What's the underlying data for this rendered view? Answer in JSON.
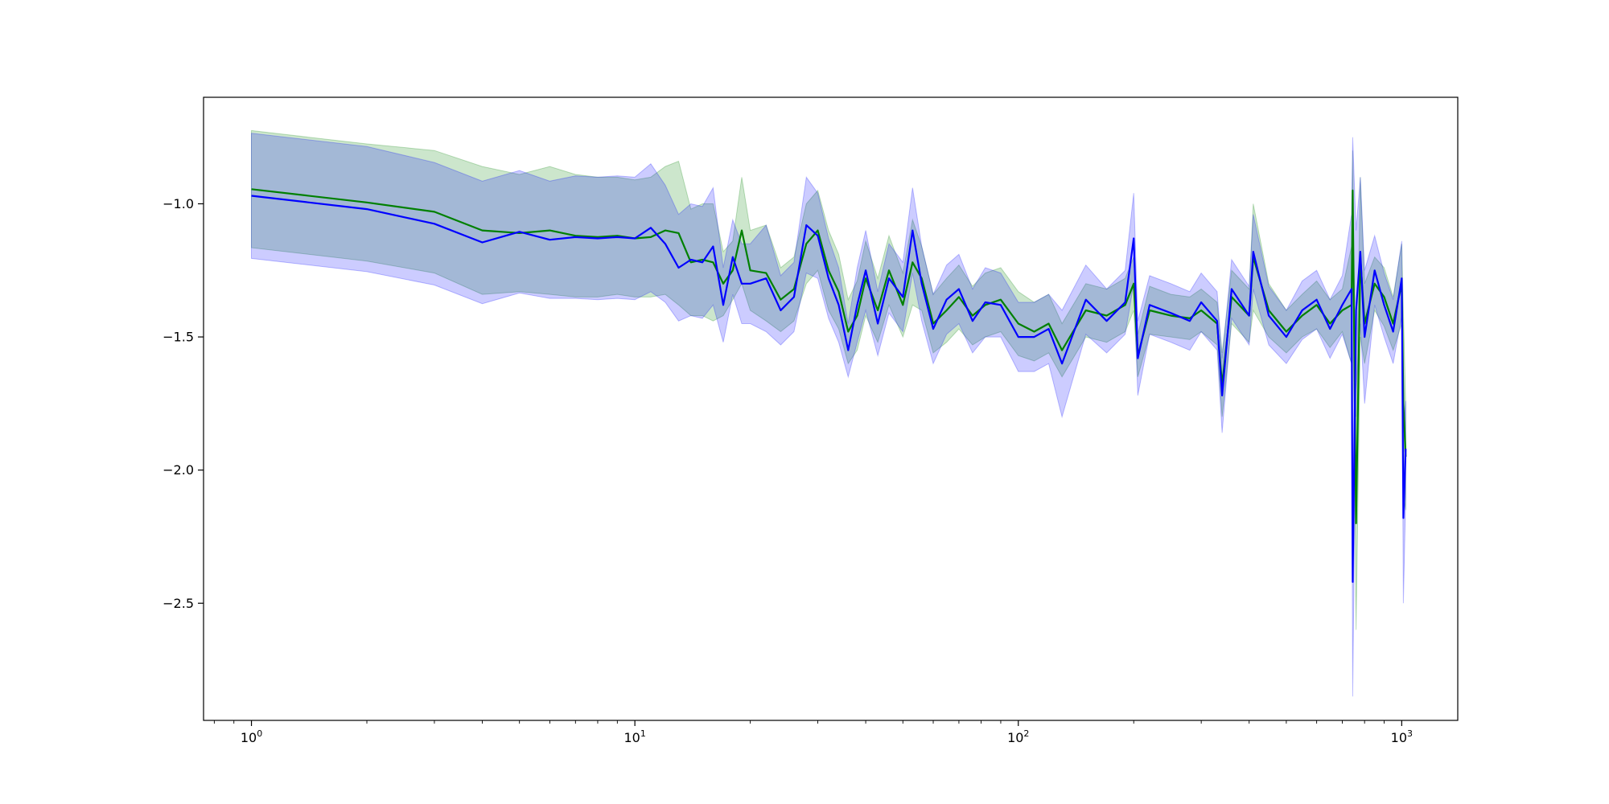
{
  "chart_data": {
    "type": "line",
    "title": "",
    "xlabel": "",
    "ylabel": "",
    "xscale": "log",
    "xlim": [
      0.75,
      1400
    ],
    "ylim": [
      -2.94,
      -0.6
    ],
    "grid": false,
    "legend": "none",
    "x_ticks": [
      {
        "value": 1,
        "base": "10",
        "exp": "0"
      },
      {
        "value": 10,
        "base": "10",
        "exp": "1"
      },
      {
        "value": 100,
        "base": "10",
        "exp": "2"
      },
      {
        "value": 1000,
        "base": "10",
        "exp": "3"
      }
    ],
    "y_ticks": [
      {
        "value": -1.0,
        "label": "−1.0"
      },
      {
        "value": -1.5,
        "label": "−1.5"
      },
      {
        "value": -2.0,
        "label": "−2.0"
      },
      {
        "value": -2.5,
        "label": "−2.5"
      }
    ],
    "series": [
      {
        "color": "#008000",
        "band_color": "#008000",
        "x": [
          1,
          2,
          3,
          4,
          5,
          6,
          7,
          8,
          9,
          10,
          11,
          12,
          13,
          14,
          15,
          16,
          17,
          18,
          19,
          20,
          22,
          24,
          26,
          28,
          30,
          32,
          34,
          36,
          38,
          40,
          43,
          46,
          50,
          53,
          56,
          60,
          65,
          70,
          76,
          82,
          90,
          100,
          110,
          120,
          130,
          150,
          170,
          190,
          200,
          205,
          220,
          250,
          280,
          300,
          330,
          340,
          360,
          400,
          410,
          450,
          500,
          550,
          600,
          650,
          700,
          740,
          745,
          760,
          780,
          800,
          850,
          900,
          950,
          1000,
          1010,
          1024
        ],
        "values": [
          -0.945,
          -0.995,
          -1.03,
          -1.1,
          -1.11,
          -1.1,
          -1.12,
          -1.125,
          -1.12,
          -1.13,
          -1.125,
          -1.1,
          -1.11,
          -1.22,
          -1.21,
          -1.22,
          -1.3,
          -1.25,
          -1.1,
          -1.25,
          -1.26,
          -1.36,
          -1.32,
          -1.15,
          -1.1,
          -1.25,
          -1.33,
          -1.48,
          -1.42,
          -1.28,
          -1.4,
          -1.25,
          -1.38,
          -1.22,
          -1.28,
          -1.45,
          -1.4,
          -1.35,
          -1.42,
          -1.38,
          -1.36,
          -1.45,
          -1.48,
          -1.45,
          -1.55,
          -1.4,
          -1.42,
          -1.38,
          -1.3,
          -1.57,
          -1.4,
          -1.42,
          -1.43,
          -1.4,
          -1.45,
          -1.68,
          -1.35,
          -1.42,
          -1.2,
          -1.4,
          -1.48,
          -1.42,
          -1.38,
          -1.45,
          -1.4,
          -1.38,
          -0.95,
          -2.2,
          -1.2,
          -1.45,
          -1.3,
          -1.35,
          -1.45,
          -1.3,
          -1.75,
          -1.95
        ],
        "lower": [
          -1.165,
          -1.215,
          -1.26,
          -1.34,
          -1.33,
          -1.34,
          -1.35,
          -1.35,
          -1.34,
          -1.35,
          -1.35,
          -1.34,
          -1.38,
          -1.42,
          -1.42,
          -1.44,
          -1.42,
          -1.36,
          -1.3,
          -1.4,
          -1.44,
          -1.48,
          -1.44,
          -1.3,
          -1.25,
          -1.4,
          -1.47,
          -1.6,
          -1.55,
          -1.42,
          -1.52,
          -1.38,
          -1.5,
          -1.38,
          -1.4,
          -1.56,
          -1.52,
          -1.47,
          -1.53,
          -1.5,
          -1.48,
          -1.57,
          -1.59,
          -1.56,
          -1.65,
          -1.5,
          -1.52,
          -1.48,
          -1.4,
          -1.65,
          -1.49,
          -1.5,
          -1.51,
          -1.48,
          -1.53,
          -1.8,
          -1.45,
          -1.52,
          -1.4,
          -1.5,
          -1.56,
          -1.5,
          -1.47,
          -1.54,
          -1.48,
          -1.6,
          -1.1,
          -2.6,
          -1.5,
          -1.6,
          -1.4,
          -1.46,
          -1.55,
          -1.45,
          -2.1,
          -2.15
        ],
        "upper": [
          -0.725,
          -0.775,
          -0.8,
          -0.86,
          -0.89,
          -0.86,
          -0.89,
          -0.9,
          -0.9,
          -0.91,
          -0.9,
          -0.86,
          -0.84,
          -1.02,
          -1.0,
          -1.0,
          -1.18,
          -1.14,
          -0.9,
          -1.1,
          -1.08,
          -1.24,
          -1.2,
          -1.0,
          -0.95,
          -1.1,
          -1.19,
          -1.36,
          -1.29,
          -1.14,
          -1.28,
          -1.12,
          -1.26,
          -1.06,
          -1.16,
          -1.34,
          -1.28,
          -1.23,
          -1.31,
          -1.26,
          -1.24,
          -1.33,
          -1.37,
          -1.34,
          -1.45,
          -1.3,
          -1.32,
          -1.28,
          -1.2,
          -1.49,
          -1.31,
          -1.34,
          -1.35,
          -1.32,
          -1.37,
          -1.56,
          -1.25,
          -1.32,
          -1.0,
          -1.3,
          -1.4,
          -1.34,
          -1.29,
          -1.36,
          -1.32,
          -1.16,
          -0.8,
          -1.8,
          -0.9,
          -1.3,
          -1.2,
          -1.24,
          -1.35,
          -1.15,
          -1.4,
          -1.75
        ]
      },
      {
        "color": "#0000ff",
        "band_color": "#0000ff",
        "x": [
          1,
          2,
          3,
          4,
          5,
          6,
          7,
          8,
          9,
          10,
          11,
          12,
          13,
          14,
          15,
          16,
          17,
          18,
          19,
          20,
          22,
          24,
          26,
          28,
          30,
          32,
          34,
          36,
          38,
          40,
          43,
          46,
          50,
          53,
          56,
          60,
          65,
          70,
          76,
          82,
          90,
          100,
          110,
          120,
          130,
          150,
          170,
          190,
          200,
          205,
          220,
          250,
          280,
          300,
          330,
          340,
          360,
          400,
          410,
          450,
          500,
          550,
          600,
          650,
          700,
          740,
          745,
          760,
          780,
          800,
          850,
          900,
          950,
          1000,
          1010,
          1024
        ],
        "values": [
          -0.97,
          -1.02,
          -1.075,
          -1.145,
          -1.105,
          -1.135,
          -1.125,
          -1.13,
          -1.125,
          -1.13,
          -1.09,
          -1.15,
          -1.24,
          -1.21,
          -1.22,
          -1.16,
          -1.38,
          -1.2,
          -1.3,
          -1.3,
          -1.28,
          -1.4,
          -1.35,
          -1.08,
          -1.12,
          -1.28,
          -1.38,
          -1.55,
          -1.38,
          -1.25,
          -1.45,
          -1.28,
          -1.35,
          -1.1,
          -1.3,
          -1.47,
          -1.36,
          -1.32,
          -1.44,
          -1.37,
          -1.38,
          -1.5,
          -1.5,
          -1.47,
          -1.6,
          -1.36,
          -1.44,
          -1.37,
          -1.13,
          -1.58,
          -1.38,
          -1.41,
          -1.44,
          -1.37,
          -1.44,
          -1.72,
          -1.32,
          -1.42,
          -1.18,
          -1.42,
          -1.5,
          -1.4,
          -1.36,
          -1.47,
          -1.38,
          -1.32,
          -2.42,
          -1.4,
          -1.18,
          -1.5,
          -1.25,
          -1.38,
          -1.48,
          -1.28,
          -2.18,
          -1.92
        ],
        "lower": [
          -1.205,
          -1.255,
          -1.305,
          -1.375,
          -1.335,
          -1.355,
          -1.355,
          -1.36,
          -1.355,
          -1.36,
          -1.33,
          -1.37,
          -1.44,
          -1.42,
          -1.43,
          -1.38,
          -1.52,
          -1.34,
          -1.45,
          -1.45,
          -1.48,
          -1.53,
          -1.48,
          -1.26,
          -1.28,
          -1.43,
          -1.52,
          -1.65,
          -1.52,
          -1.4,
          -1.57,
          -1.41,
          -1.48,
          -1.26,
          -1.44,
          -1.6,
          -1.49,
          -1.45,
          -1.56,
          -1.5,
          -1.5,
          -1.63,
          -1.63,
          -1.6,
          -1.8,
          -1.49,
          -1.56,
          -1.49,
          -1.3,
          -1.72,
          -1.49,
          -1.52,
          -1.55,
          -1.48,
          -1.55,
          -1.86,
          -1.43,
          -1.53,
          -1.32,
          -1.53,
          -1.6,
          -1.51,
          -1.47,
          -1.58,
          -1.49,
          -1.6,
          -2.85,
          -1.7,
          -1.45,
          -1.75,
          -1.38,
          -1.5,
          -1.6,
          -1.42,
          -2.5,
          -2.1
        ],
        "upper": [
          -0.735,
          -0.785,
          -0.845,
          -0.915,
          -0.875,
          -0.915,
          -0.895,
          -0.9,
          -0.895,
          -0.9,
          -0.85,
          -0.93,
          -1.04,
          -1.0,
          -1.01,
          -0.94,
          -1.24,
          -1.06,
          -1.15,
          -1.15,
          -1.08,
          -1.27,
          -1.22,
          -0.9,
          -0.96,
          -1.13,
          -1.24,
          -1.45,
          -1.24,
          -1.1,
          -1.33,
          -1.15,
          -1.22,
          -0.94,
          -1.16,
          -1.34,
          -1.23,
          -1.19,
          -1.32,
          -1.24,
          -1.26,
          -1.37,
          -1.37,
          -1.34,
          -1.4,
          -1.23,
          -1.32,
          -1.25,
          -0.96,
          -1.44,
          -1.27,
          -1.3,
          -1.33,
          -1.26,
          -1.33,
          -1.58,
          -1.21,
          -1.31,
          -1.04,
          -1.31,
          -1.4,
          -1.29,
          -1.25,
          -1.36,
          -1.27,
          -1.04,
          -0.75,
          -1.1,
          -0.9,
          -1.25,
          -1.12,
          -1.26,
          -1.36,
          -1.14,
          -1.86,
          -1.74
        ]
      }
    ]
  }
}
